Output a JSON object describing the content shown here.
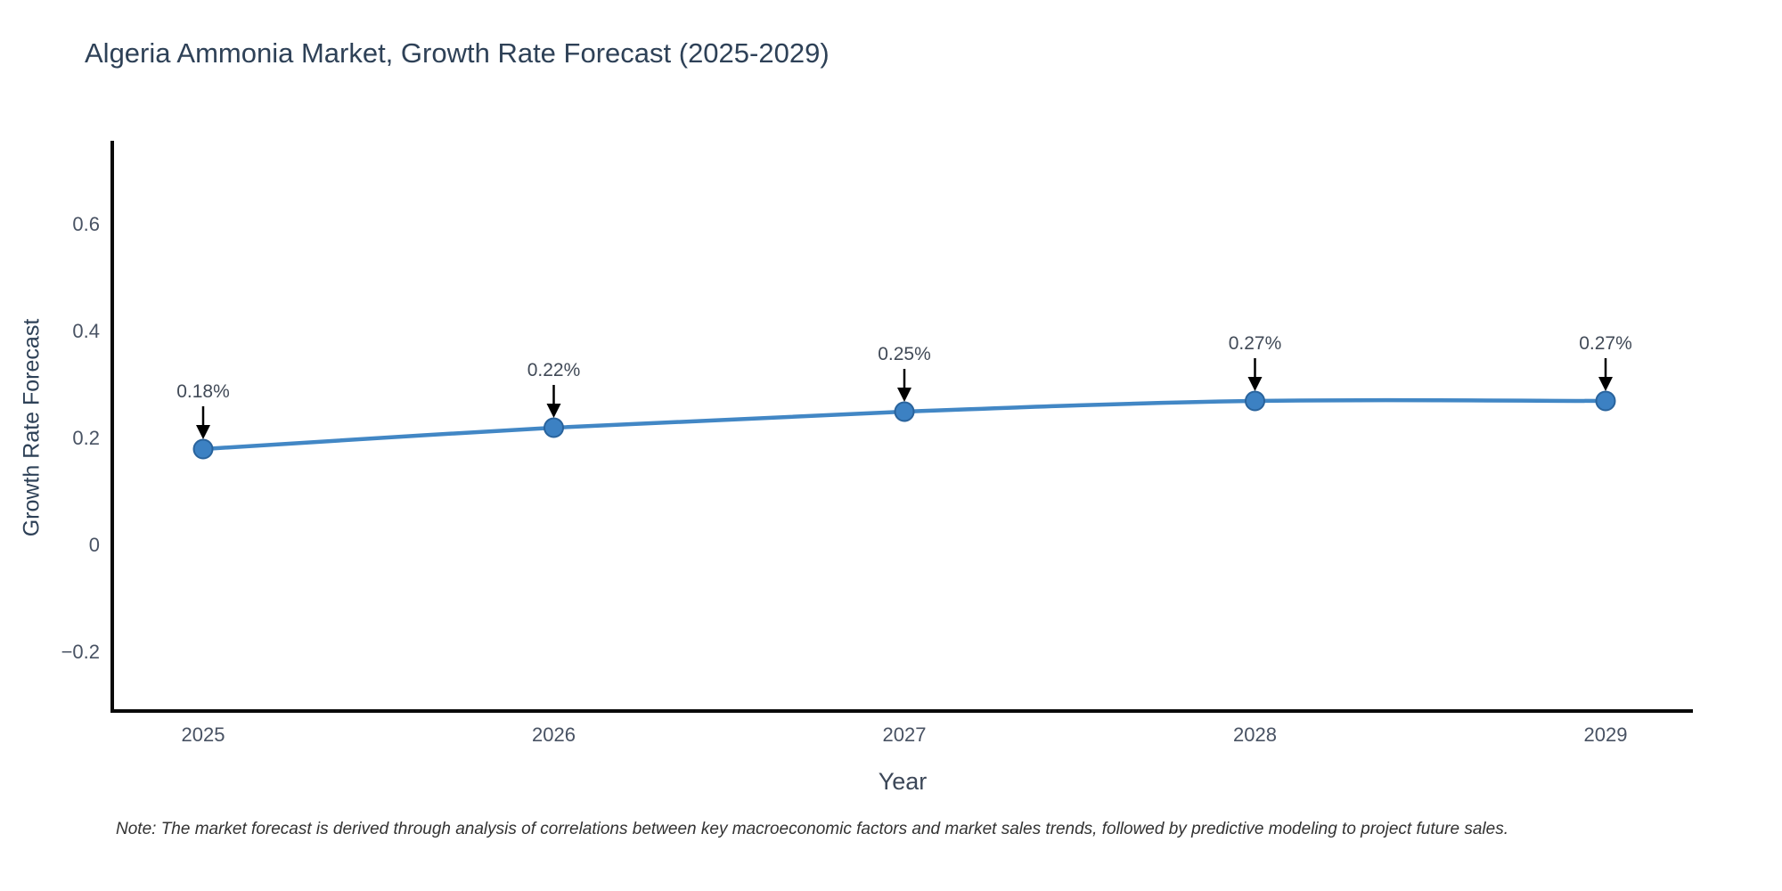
{
  "title": "Algeria Ammonia Market, Growth Rate Forecast (2025-2029)",
  "note": "Note: The market forecast is derived through analysis of correlations between key macroeconomic factors and market sales trends, followed by predictive modeling to project future sales.",
  "chart_data": {
    "type": "line",
    "title": "Algeria Ammonia Market, Growth Rate Forecast (2025-2029)",
    "xlabel": "Year",
    "ylabel": "Growth Rate Forecast",
    "x": [
      2025,
      2026,
      2027,
      2028,
      2029
    ],
    "xtick_labels": [
      "2025",
      "2026",
      "2027",
      "2028",
      "2029"
    ],
    "values": [
      0.18,
      0.22,
      0.25,
      0.27,
      0.27
    ],
    "point_labels": [
      "0.18%",
      "0.22%",
      "0.25%",
      "0.27%",
      "0.27%"
    ],
    "yticks": [
      0.6,
      0.4,
      0.2,
      0,
      -0.2
    ],
    "ytick_labels": [
      "0.6",
      "0.4",
      "0.2",
      "0",
      "−0.2"
    ],
    "ylim": [
      -0.31,
      0.75
    ],
    "grid": false,
    "legend": "none",
    "line_shape": "spline",
    "colors": {
      "line": "#4287c5",
      "marker_fill": "#3c81c3",
      "marker_edge": "#29639c",
      "axis_line": "#0a0a0a",
      "annotation_arrow": "#000000",
      "title_text": "#2e4157",
      "tick_text": "#485263"
    }
  }
}
